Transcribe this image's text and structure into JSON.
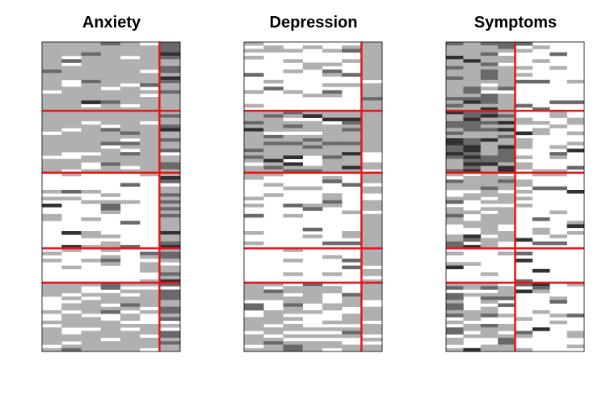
{
  "chart_data": [
    {
      "type": "heatmap",
      "title": "Anxiety",
      "rows": 90,
      "cols": 7,
      "row_splits": [
        20,
        38,
        60,
        70
      ],
      "col_splits": [
        6
      ],
      "seed": 11,
      "shades": [
        "#ffffff",
        "#b0b0b0",
        "#696969",
        "#303030"
      ],
      "grid": false,
      "legend": "none"
    },
    {
      "type": "heatmap",
      "title": "Depression",
      "rows": 90,
      "cols": 7,
      "row_splits": [
        20,
        38,
        60,
        70
      ],
      "col_splits": [
        6
      ],
      "seed": 23,
      "shades": [
        "#ffffff",
        "#b0b0b0",
        "#696969",
        "#303030"
      ],
      "grid": false,
      "legend": "none"
    },
    {
      "type": "heatmap",
      "title": "Symptoms",
      "rows": 90,
      "cols": 8,
      "row_splits": [
        20,
        38,
        60,
        70
      ],
      "col_splits": [
        4
      ],
      "seed": 37,
      "shades": [
        "#ffffff",
        "#b0b0b0",
        "#696969",
        "#303030"
      ],
      "grid": false,
      "legend": "none"
    }
  ],
  "colors": {
    "split_line": "#e8141a",
    "frame": "#000000"
  }
}
